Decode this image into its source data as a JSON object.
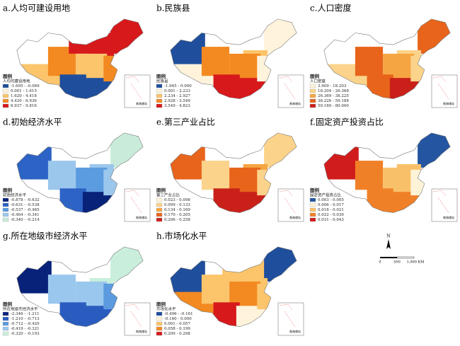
{
  "panels": [
    {
      "title": "a.人均可建设用地",
      "legend_heading": "图例",
      "legend_title": "人均可建设用地",
      "items": [
        {
          "label": "-1.695 - -0.069",
          "color": "#1f4e9c"
        },
        {
          "label": "0.001 - 1.615",
          "color": "#fff3dc"
        },
        {
          "label": "1.620 - 4.418",
          "color": "#fcc56b"
        },
        {
          "label": "4.420 - 6.936",
          "color": "#f28a21"
        },
        {
          "label": "6.937 - 9.816",
          "color": "#d7191c"
        }
      ]
    },
    {
      "title": "b.民族县",
      "legend_heading": "图例",
      "legend_title": "民族县",
      "items": [
        {
          "label": "-1.945 - 0.000",
          "color": "#1f4e9c"
        },
        {
          "label": "0.001 - 2.233",
          "color": "#fff3dc"
        },
        {
          "label": "2.234 - 2.927",
          "color": "#fcc56b"
        },
        {
          "label": "2.928 - 3.549",
          "color": "#f28a21"
        },
        {
          "label": "3.549 - 4.823",
          "color": "#d7191c"
        }
      ]
    },
    {
      "title": "c.人口密度",
      "legend_heading": "图例",
      "legend_title": "人口密度",
      "items": [
        {
          "label": "3.909 - 18.203",
          "color": "#fdf3d7"
        },
        {
          "label": "18.204 - 26.368",
          "color": "#fbd38a"
        },
        {
          "label": "26.369 - 38.225",
          "color": "#f5a542"
        },
        {
          "label": "38.226 - 59.188",
          "color": "#e8641b"
        },
        {
          "label": "59.189 - 80.000",
          "color": "#c9211a"
        }
      ]
    },
    {
      "title": "d.初始经济水平",
      "legend_heading": "图例",
      "legend_title": "初始经济水平",
      "items": [
        {
          "label": "-0.878 - -0.632",
          "color": "#08227a"
        },
        {
          "label": "-0.631 - -0.538",
          "color": "#2c63c5"
        },
        {
          "label": "-0.537 - -0.465",
          "color": "#5b9be0"
        },
        {
          "label": "-0.464 - -0.341",
          "color": "#9cc7ec"
        },
        {
          "label": "-0.340 - -0.214",
          "color": "#c8ecd9"
        }
      ]
    },
    {
      "title": "e.第三产业占比",
      "legend_heading": "图例",
      "legend_title": "第三产业占比",
      "items": [
        {
          "label": "0.023 - 0.098",
          "color": "#fdf3d7"
        },
        {
          "label": "0.099 - 0.133",
          "color": "#fbd38a"
        },
        {
          "label": "0.134 - 0.169",
          "color": "#f5a542"
        },
        {
          "label": "0.170 - 0.205",
          "color": "#e8641b"
        },
        {
          "label": "0.206 - 0.258",
          "color": "#c9211a"
        }
      ]
    },
    {
      "title": "f.固定资产投资占比",
      "legend_heading": "图例",
      "legend_title": "固定资产投资占比",
      "items": [
        {
          "label": "0.003 - 0.005",
          "color": "#2355a0"
        },
        {
          "label": "0.006 - 0.017",
          "color": "#fdf3d7"
        },
        {
          "label": "0.018 - 0.021",
          "color": "#f9c06a"
        },
        {
          "label": "0.022 - 0.030",
          "color": "#f08028"
        },
        {
          "label": "0.031 - 0.043",
          "color": "#d01c1c"
        }
      ]
    },
    {
      "title": "g.所在地级市经济水平",
      "legend_heading": "图例",
      "legend_title": "所在地级市经济水平",
      "items": [
        {
          "label": "-2.346 - -1.211",
          "color": "#08227a"
        },
        {
          "label": "-1.210 - -0.713",
          "color": "#2a5cc0"
        },
        {
          "label": "-0.712 - -0.420",
          "color": "#5c9ae0"
        },
        {
          "label": "-0.419 - -0.321",
          "color": "#9ac7ee"
        },
        {
          "label": "-0.320 - -0.193",
          "color": "#c9eedc"
        }
      ]
    },
    {
      "title": "h.市场化水平",
      "legend_heading": "图例",
      "legend_title": "市场化水平",
      "items": [
        {
          "label": "-0.496 - -0.161",
          "color": "#1f4e9c"
        },
        {
          "label": "-0.160 - 0.000",
          "color": "#fff3dc"
        },
        {
          "label": "0.001 - 0.057",
          "color": "#fcc56b"
        },
        {
          "label": "0.058 - 0.199",
          "color": "#f28a21"
        },
        {
          "label": "0.200 - 0.298",
          "color": "#d7191c"
        }
      ]
    }
  ],
  "inset_label": "南海诸岛",
  "north": "N",
  "scale": [
    "0",
    "500",
    "1,000 KM"
  ]
}
